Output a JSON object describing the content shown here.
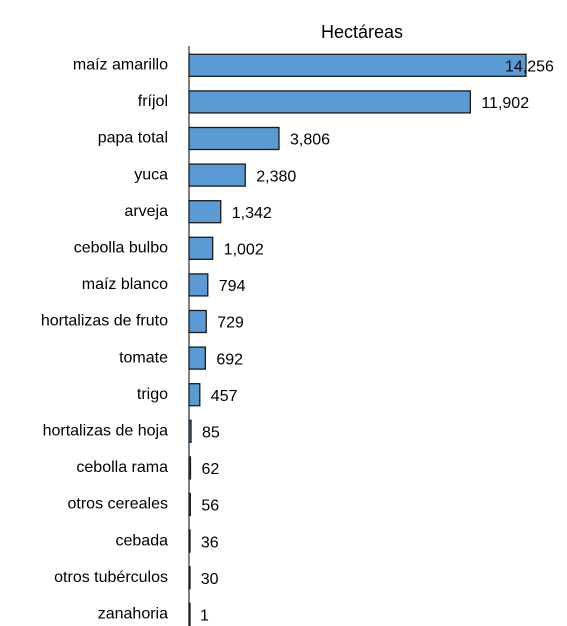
{
  "chart_data": {
    "type": "barh",
    "title": "Hectáreas",
    "categories": [
      "maíz amarillo",
      "fríjol",
      "papa total",
      "yuca",
      "arveja",
      "cebolla bulbo",
      "maíz blanco",
      "hortalizas de fruto",
      "tomate",
      "trigo",
      "hortalizas de hoja",
      "cebolla rama",
      "otros cereales",
      "cebada",
      "otros tubérculos",
      "zanahoria"
    ],
    "values": [
      14256,
      11902,
      3806,
      2380,
      1342,
      1002,
      794,
      729,
      692,
      457,
      85,
      62,
      56,
      36,
      30,
      1
    ],
    "value_labels": [
      "14,256",
      "11,902",
      "3,806",
      "2,380",
      "1,342",
      "1,002",
      "794",
      "729",
      "692",
      "457",
      "85",
      "62",
      "56",
      "36",
      "30",
      "1"
    ],
    "color": "#5b9bd5"
  }
}
